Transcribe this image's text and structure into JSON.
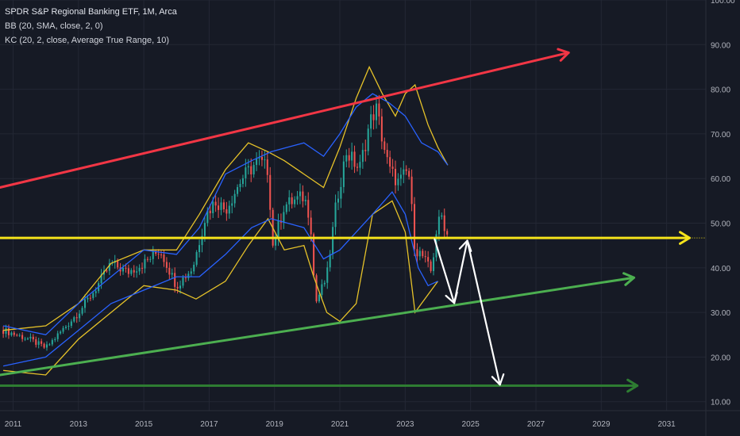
{
  "legend": {
    "title": "SPDR S&P Regional Banking ETF, 1M, Arca",
    "bb": "BB (20, SMA, close, 2, 0)",
    "kc": "KC (20, 2, close, Average True Range, 10)"
  },
  "colors": {
    "background": "#161a25",
    "grid": "#232734",
    "up": "#26a69a",
    "down": "#ef5350",
    "bb_band": "#2962ff",
    "kc_band": "#e6c229",
    "resistance": "#f23645",
    "support_mid": "#f5e31b",
    "support_low": "#4caf50",
    "target": "#2e7d32",
    "projection": "#ffffff",
    "axis_text": "#b2b5be"
  },
  "chart_data": {
    "type": "candlestick",
    "title": "SPDR S&P Regional Banking ETF, 1M, Arca",
    "x_ticks": [
      "2011",
      "2013",
      "2015",
      "2017",
      "2019",
      "2021",
      "2023",
      "2025",
      "2027",
      "2029",
      "2031"
    ],
    "y_ticks": [
      "10.00",
      "20.00",
      "30.00",
      "40.00",
      "50.00",
      "60.00",
      "70.00",
      "80.00",
      "90.00",
      "100.00"
    ],
    "xlim": [
      2010.6,
      2032.2
    ],
    "ylim": [
      8.0,
      100.0
    ],
    "grid": true,
    "candles_summary": [
      {
        "x": 2010.7,
        "close": 26
      },
      {
        "x": 2011.5,
        "close": 24
      },
      {
        "x": 2012.0,
        "close": 22
      },
      {
        "x": 2012.5,
        "close": 26
      },
      {
        "x": 2013.0,
        "close": 30
      },
      {
        "x": 2013.5,
        "close": 35
      },
      {
        "x": 2014.0,
        "close": 41
      },
      {
        "x": 2014.5,
        "close": 39
      },
      {
        "x": 2015.0,
        "close": 41
      },
      {
        "x": 2015.5,
        "close": 44
      },
      {
        "x": 2016.0,
        "close": 36
      },
      {
        "x": 2016.5,
        "close": 40
      },
      {
        "x": 2016.9,
        "close": 52
      },
      {
        "x": 2017.2,
        "close": 55
      },
      {
        "x": 2017.5,
        "close": 53
      },
      {
        "x": 2018.0,
        "close": 60
      },
      {
        "x": 2018.5,
        "close": 64
      },
      {
        "x": 2018.8,
        "close": 62
      },
      {
        "x": 2018.95,
        "close": 45
      },
      {
        "x": 2019.3,
        "close": 54
      },
      {
        "x": 2019.9,
        "close": 56
      },
      {
        "x": 2020.1,
        "close": 51
      },
      {
        "x": 2020.25,
        "close": 32
      },
      {
        "x": 2020.6,
        "close": 38
      },
      {
        "x": 2020.9,
        "close": 55
      },
      {
        "x": 2021.2,
        "close": 66
      },
      {
        "x": 2021.6,
        "close": 62
      },
      {
        "x": 2021.9,
        "close": 72
      },
      {
        "x": 2022.1,
        "close": 76
      },
      {
        "x": 2022.5,
        "close": 62
      },
      {
        "x": 2022.8,
        "close": 59
      },
      {
        "x": 2023.1,
        "close": 62
      },
      {
        "x": 2023.3,
        "close": 44
      },
      {
        "x": 2023.5,
        "close": 43
      },
      {
        "x": 2023.8,
        "close": 39
      },
      {
        "x": 2023.95,
        "close": 48
      },
      {
        "x": 2024.1,
        "close": 52
      },
      {
        "x": 2024.3,
        "close": 47
      }
    ],
    "bollinger_upper": [
      [
        2010.7,
        26
      ],
      [
        2012,
        27
      ],
      [
        2013,
        32
      ],
      [
        2014,
        41
      ],
      [
        2015,
        44
      ],
      [
        2016,
        44
      ],
      [
        2016.7,
        52
      ],
      [
        2017.5,
        62
      ],
      [
        2018.2,
        68
      ],
      [
        2018.8,
        66
      ],
      [
        2019.3,
        64
      ],
      [
        2019.9,
        61
      ],
      [
        2020.5,
        58
      ],
      [
        2021,
        67
      ],
      [
        2021.5,
        78
      ],
      [
        2021.9,
        85
      ],
      [
        2022.3,
        79
      ],
      [
        2022.7,
        74
      ],
      [
        2023.0,
        79
      ],
      [
        2023.3,
        81
      ],
      [
        2023.7,
        72
      ],
      [
        2024.0,
        67
      ],
      [
        2024.3,
        63
      ]
    ],
    "bollinger_lower": [
      [
        2010.7,
        17
      ],
      [
        2012,
        16
      ],
      [
        2013,
        24
      ],
      [
        2014,
        30
      ],
      [
        2015,
        36
      ],
      [
        2016,
        35
      ],
      [
        2016.6,
        33
      ],
      [
        2017.5,
        37
      ],
      [
        2018.2,
        45
      ],
      [
        2018.8,
        51
      ],
      [
        2019.3,
        44
      ],
      [
        2019.9,
        45
      ],
      [
        2020.2,
        38
      ],
      [
        2020.6,
        30
      ],
      [
        2021,
        28
      ],
      [
        2021.5,
        32
      ],
      [
        2022,
        52
      ],
      [
        2022.6,
        55
      ],
      [
        2023.0,
        48
      ],
      [
        2023.3,
        30
      ],
      [
        2023.6,
        33
      ],
      [
        2024.0,
        37
      ]
    ],
    "keltner_upper": [
      [
        2010.7,
        27
      ],
      [
        2012,
        25
      ],
      [
        2013,
        32
      ],
      [
        2014,
        38
      ],
      [
        2015,
        44
      ],
      [
        2016,
        43
      ],
      [
        2016.7,
        49
      ],
      [
        2017.5,
        61
      ],
      [
        2018.3,
        64
      ],
      [
        2018.9,
        66
      ],
      [
        2019.4,
        67
      ],
      [
        2019.9,
        68
      ],
      [
        2020.5,
        65
      ],
      [
        2021,
        70
      ],
      [
        2021.5,
        76
      ],
      [
        2022,
        79
      ],
      [
        2022.5,
        77
      ],
      [
        2023,
        74
      ],
      [
        2023.5,
        68
      ],
      [
        2024.0,
        66
      ],
      [
        2024.3,
        63
      ]
    ],
    "keltner_lower": [
      [
        2010.7,
        18
      ],
      [
        2012,
        20
      ],
      [
        2013,
        26
      ],
      [
        2014,
        32
      ],
      [
        2015,
        35
      ],
      [
        2016,
        38
      ],
      [
        2016.7,
        38
      ],
      [
        2017.5,
        43
      ],
      [
        2018.3,
        49
      ],
      [
        2018.9,
        51
      ],
      [
        2019.4,
        50
      ],
      [
        2019.9,
        49
      ],
      [
        2020.5,
        42
      ],
      [
        2021,
        44
      ],
      [
        2021.5,
        48
      ],
      [
        2022,
        52
      ],
      [
        2022.6,
        57
      ],
      [
        2023,
        52
      ],
      [
        2023.4,
        40
      ],
      [
        2023.7,
        36
      ],
      [
        2024.0,
        37
      ]
    ],
    "drawings": {
      "resistance_line": [
        [
          2010.6,
          58
        ],
        [
          2028.0,
          88.2
        ]
      ],
      "support_line": [
        [
          2010.6,
          16
        ],
        [
          2030.0,
          37.8
        ]
      ],
      "horizontal_mid": 46.7,
      "target_line": [
        [
          2010.6,
          13.6
        ],
        [
          2030.1,
          13.6
        ]
      ],
      "arrow_1": [
        [
          2023.9,
          46.4
        ],
        [
          2024.5,
          32.1
        ]
      ],
      "arrow_2": [
        [
          2024.5,
          32.1
        ],
        [
          2024.9,
          46.1
        ]
      ],
      "arrow_3": [
        [
          2024.9,
          46.1
        ],
        [
          2025.9,
          13.8
        ]
      ]
    }
  }
}
